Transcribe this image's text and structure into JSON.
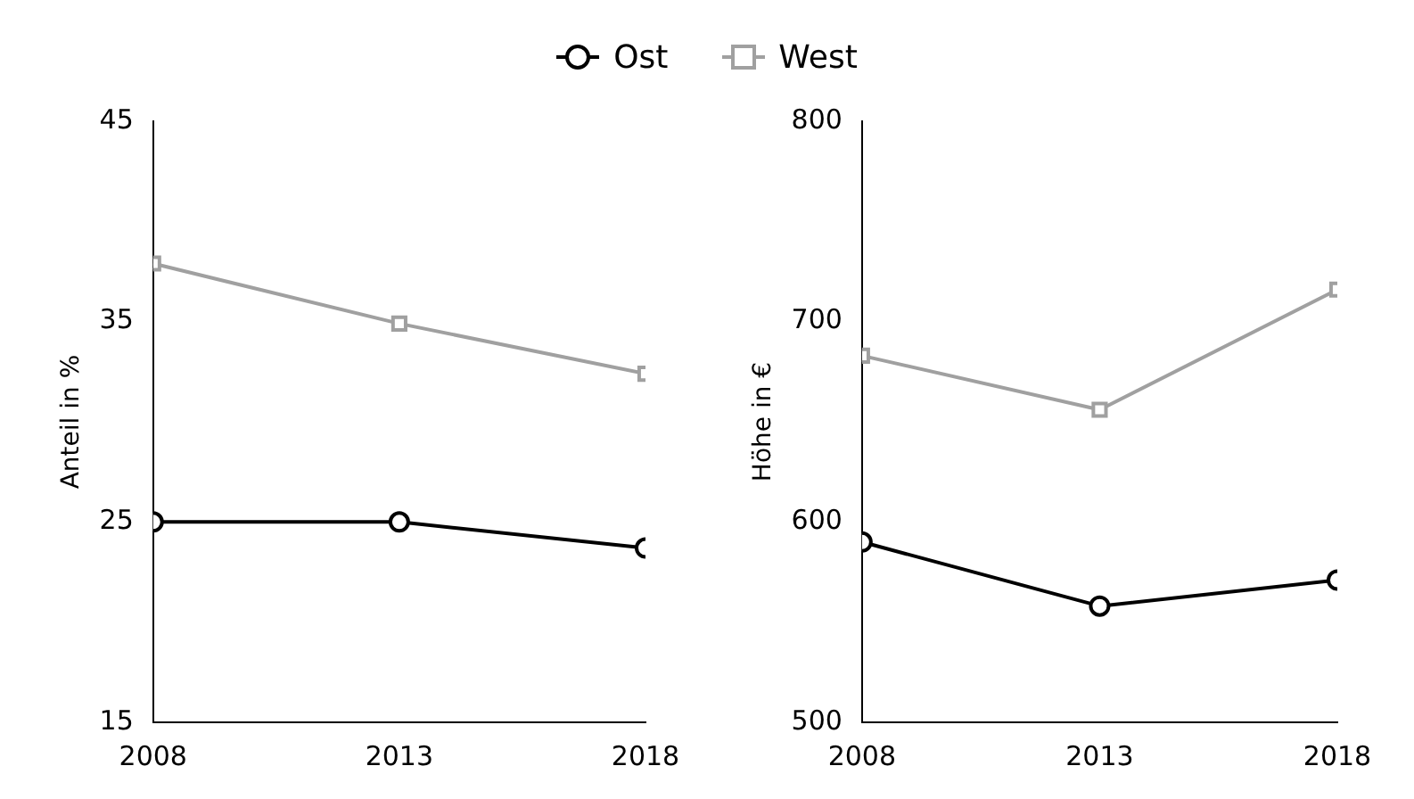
{
  "chart_data": [
    {
      "type": "line",
      "ylabel": "Anteil in %",
      "x": [
        2008,
        2013,
        2018
      ],
      "xlim": [
        2008,
        2018
      ],
      "xticks": [
        2008,
        2013,
        2018
      ],
      "ylim": [
        15,
        45
      ],
      "yticks": [
        15,
        25,
        35,
        45
      ],
      "grid": false,
      "legend": "top",
      "line_style": "solid",
      "series": [
        {
          "name": "Ost",
          "color": "#000000",
          "marker": "circle",
          "values": [
            25,
            25,
            23.7
          ]
        },
        {
          "name": "West",
          "color": "#a0a0a0",
          "marker": "square",
          "values": [
            37.9,
            34.9,
            32.4
          ]
        }
      ]
    },
    {
      "type": "line",
      "ylabel": "Höhe in €",
      "x": [
        2008,
        2013,
        2018
      ],
      "xlim": [
        2008,
        2018
      ],
      "xticks": [
        2008,
        2013,
        2018
      ],
      "ylim": [
        500,
        800
      ],
      "yticks": [
        500,
        600,
        700,
        800
      ],
      "grid": false,
      "line_style": "solid",
      "series": [
        {
          "color": "#000000",
          "marker": "circle",
          "values": [
            590,
            558,
            571
          ]
        },
        {
          "color": "#a0a0a0",
          "marker": "square",
          "values": [
            683,
            656,
            716
          ]
        }
      ]
    }
  ]
}
